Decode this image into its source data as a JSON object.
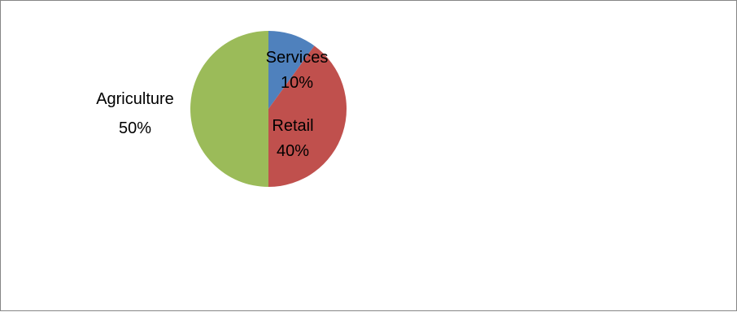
{
  "chart_data": {
    "type": "pie",
    "title": "",
    "legend": "none",
    "slices": [
      {
        "label": "Services",
        "value": 10,
        "pct_label": "10%",
        "color": "#4f81bd"
      },
      {
        "label": "Retail",
        "value": 40,
        "pct_label": "40%",
        "color": "#c0504d"
      },
      {
        "label": "Agriculture",
        "value": 50,
        "pct_label": "50%",
        "color": "#9bbb59"
      }
    ]
  }
}
